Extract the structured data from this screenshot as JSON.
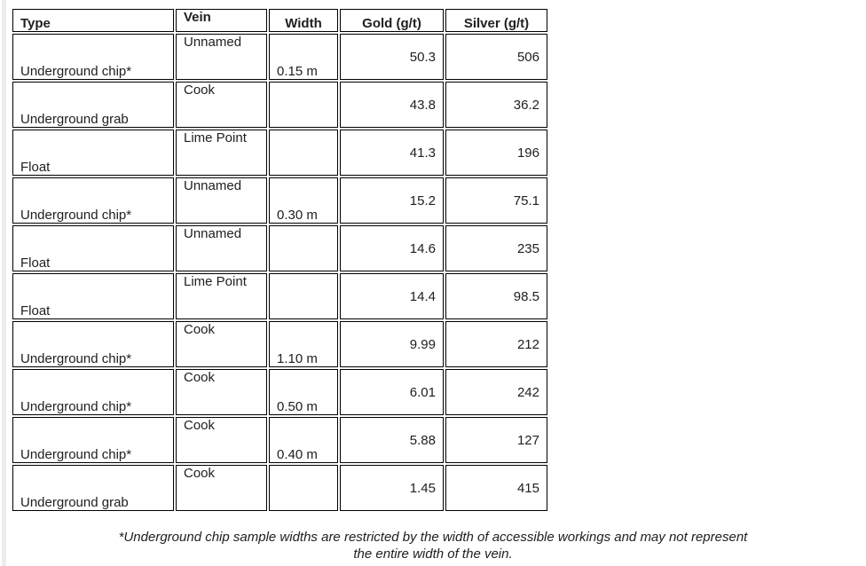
{
  "table": {
    "columns": [
      {
        "key": "type",
        "label": "Type"
      },
      {
        "key": "vein",
        "label": "Vein"
      },
      {
        "key": "width",
        "label": "Width"
      },
      {
        "key": "gold",
        "label": "Gold (g/t)"
      },
      {
        "key": "silver",
        "label": "Silver (g/t)"
      }
    ],
    "rows": [
      {
        "type": "Underground chip*",
        "vein": "Unnamed",
        "width": "0.15 m",
        "gold": "50.3",
        "silver": "506"
      },
      {
        "type": "Underground grab",
        "vein": "Cook",
        "width": "",
        "gold": "43.8",
        "silver": "36.2"
      },
      {
        "type": "Float",
        "vein": "Lime Point",
        "width": "",
        "gold": "41.3",
        "silver": "196"
      },
      {
        "type": "Underground chip*",
        "vein": "Unnamed",
        "width": "0.30 m",
        "gold": "15.2",
        "silver": "75.1"
      },
      {
        "type": "Float",
        "vein": "Unnamed",
        "width": "",
        "gold": "14.6",
        "silver": "235"
      },
      {
        "type": "Float",
        "vein": "Lime Point",
        "width": "",
        "gold": "14.4",
        "silver": "98.5"
      },
      {
        "type": "Underground chip*",
        "vein": "Cook",
        "width": "1.10 m",
        "gold": "9.99",
        "silver": "212"
      },
      {
        "type": "Underground chip*",
        "vein": "Cook",
        "width": "0.50 m",
        "gold": "6.01",
        "silver": "242"
      },
      {
        "type": "Underground chip*",
        "vein": "Cook",
        "width": "0.40 m",
        "gold": "5.88",
        "silver": "127"
      },
      {
        "type": "Underground grab",
        "vein": "Cook",
        "width": "",
        "gold": "1.45",
        "silver": "415"
      }
    ]
  },
  "footnote": {
    "lines": [
      "*Underground chip sample widths are restricted by the width of accessible workings and may not represent",
      "the entire width of the vein."
    ]
  },
  "colors": {
    "table_border": "#000000",
    "text": "#202020",
    "window_edge": "#ECECEC",
    "background": "#FFFFFF"
  }
}
